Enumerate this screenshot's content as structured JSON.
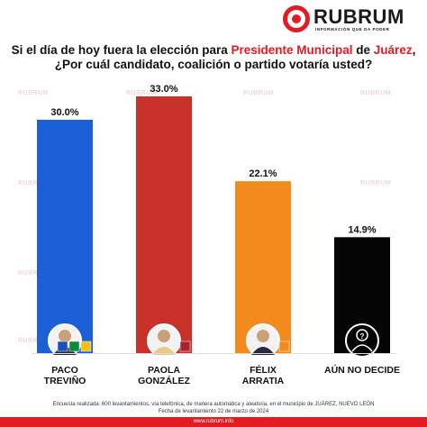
{
  "brand": {
    "name": "RUBRUM",
    "tagline": "INFORMACIÓN QUE DA PODER",
    "color": "#e31b23"
  },
  "title": {
    "line1_a": "Si el día de hoy fuera la elección para ",
    "line1_b": "Presidente Municipal",
    "line1_c": " de ",
    "line1_d": "Juárez",
    "line1_e": ",",
    "line2": "¿Por cuál candidato, coalición o partido votaría usted?"
  },
  "watermark": "RUBRUM",
  "chart_data": {
    "type": "bar",
    "categories": [
      "PACO TREVIÑO",
      "PAOLA GONZÁLEZ",
      "FÉLIX ARRATIA",
      "AÚN NO DECIDE"
    ],
    "labels": [
      [
        "PACO",
        "TREVIÑO"
      ],
      [
        "PAOLA",
        "GONZÁLEZ"
      ],
      [
        "FÉLIX",
        "ARRATIA"
      ],
      [
        "AÚN NO DECIDE"
      ]
    ],
    "values": [
      30.0,
      33.0,
      22.1,
      14.9
    ],
    "value_labels": [
      "30.0%",
      "33.0%",
      "22.1%",
      "14.9%"
    ],
    "colors": [
      "#1d5fd6",
      "#c8302a",
      "#f28a1e",
      "#050505"
    ],
    "party_logos": [
      [
        "PAN",
        "PRI",
        "PRD"
      ],
      [
        "MORENA"
      ],
      [
        "MC"
      ],
      []
    ],
    "ylim": [
      0,
      33
    ]
  },
  "footer": {
    "line1": "Encuesta realizada: 600 levantamientos, vía telefónica, de manera automática y aleatoria, en el municipio de JUÁREZ, NUEVO LEÓN",
    "line2": "Fecha de levantamiento 22 de marzo de 2024",
    "url": "www.rubrum.info"
  }
}
